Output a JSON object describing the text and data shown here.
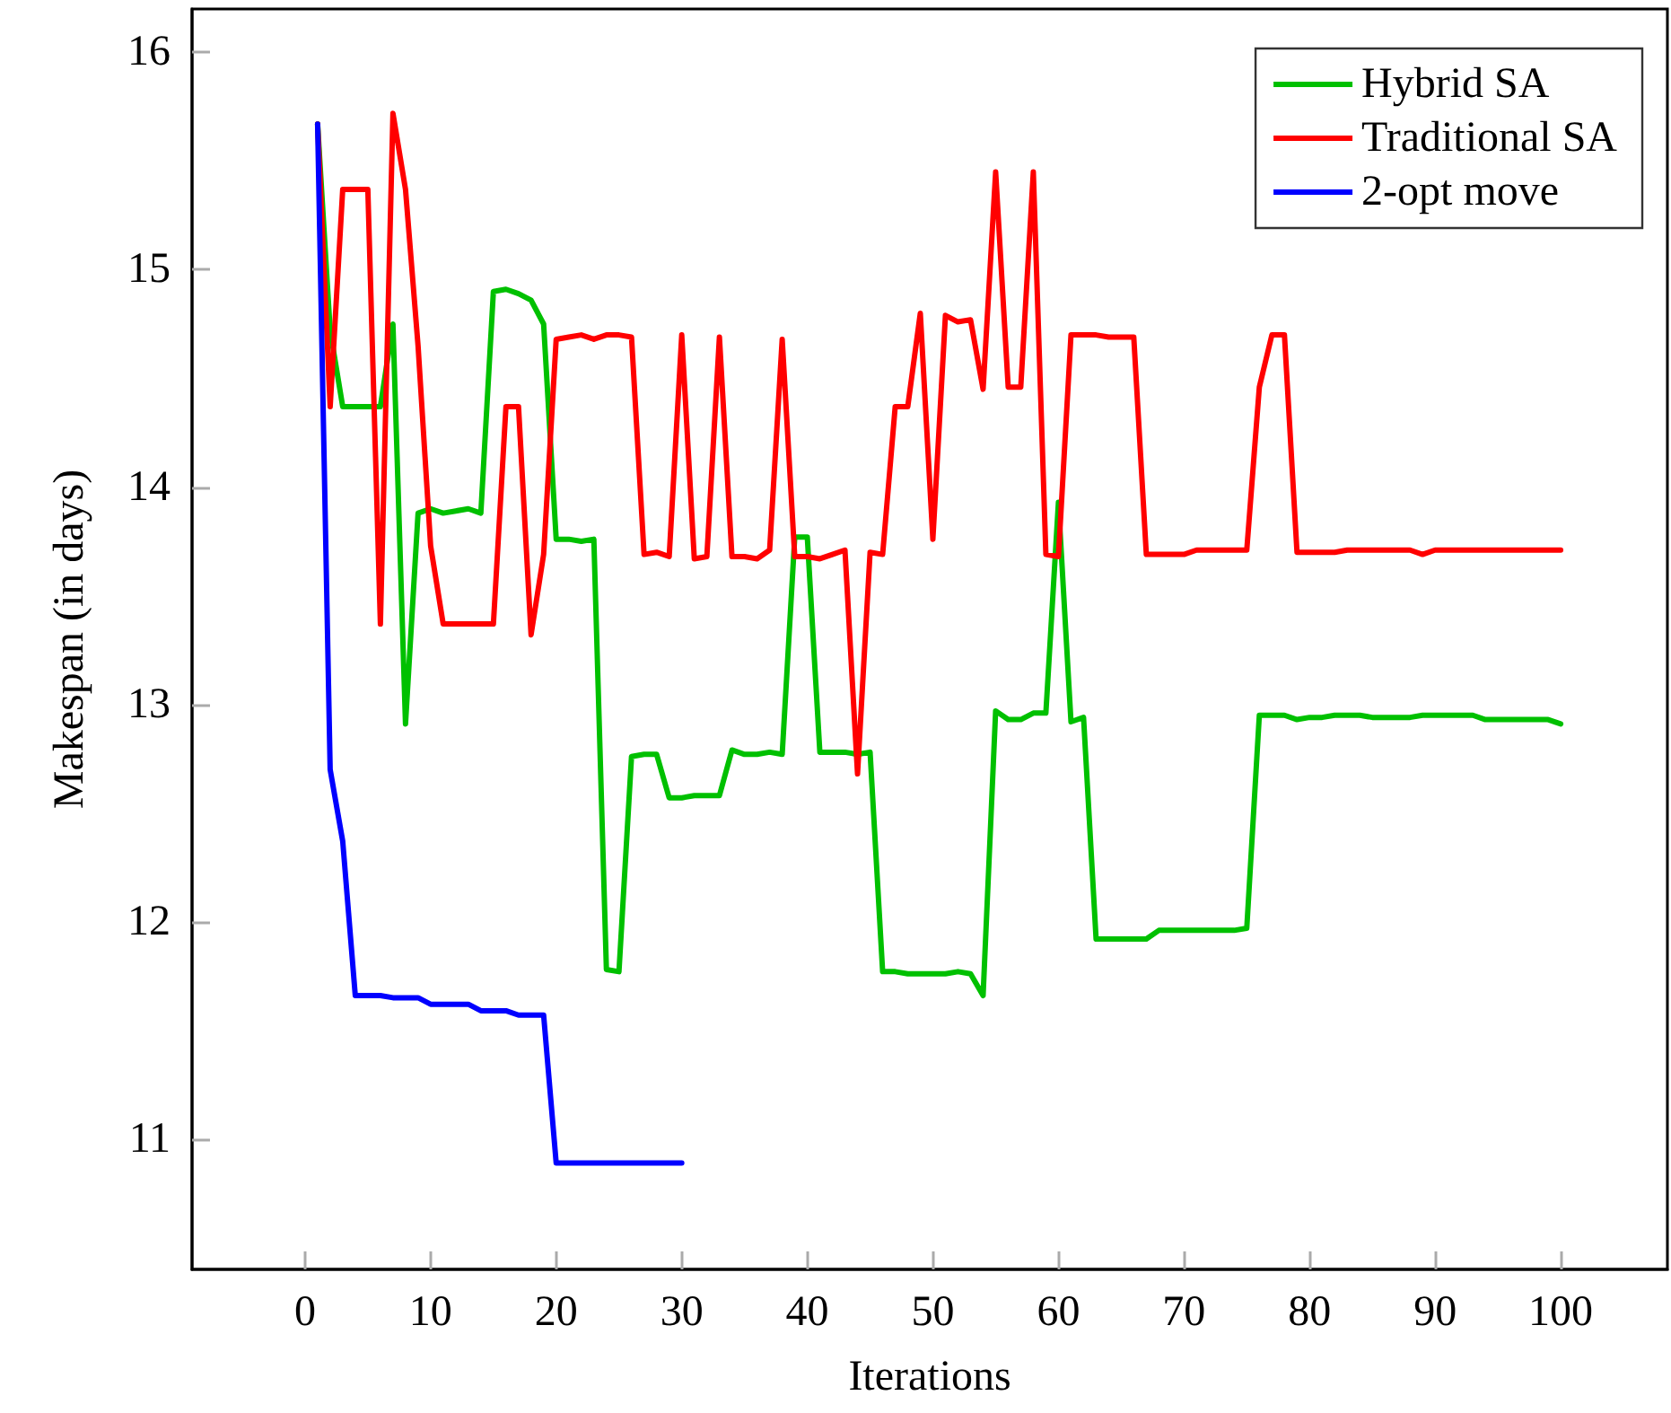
{
  "chart_data": {
    "type": "line",
    "xlabel": "Iterations",
    "ylabel": "Makespan (in days)",
    "x": [
      1,
      2,
      3,
      4,
      5,
      6,
      7,
      8,
      9,
      10,
      11,
      12,
      13,
      14,
      15,
      16,
      17,
      18,
      19,
      20,
      21,
      22,
      23,
      24,
      25,
      26,
      27,
      28,
      29,
      30,
      31,
      32,
      33,
      34,
      35,
      36,
      37,
      38,
      39,
      40,
      41,
      42,
      43,
      44,
      45,
      46,
      47,
      48,
      49,
      50,
      51,
      52,
      53,
      54,
      55,
      56,
      57,
      58,
      59,
      60,
      61,
      62,
      63,
      64,
      65,
      66,
      67,
      68,
      69,
      70,
      71,
      72,
      73,
      74,
      75,
      76,
      77,
      78,
      79,
      80,
      81,
      82,
      83,
      84,
      85,
      86,
      87,
      88,
      89,
      90,
      91,
      92,
      93,
      94,
      95,
      96,
      97,
      98,
      99,
      100
    ],
    "series": [
      {
        "name": "Hybrid SA",
        "color": "#00c000",
        "values": [
          15.67,
          14.72,
          14.37,
          14.37,
          14.37,
          14.37,
          14.75,
          12.91,
          13.88,
          13.9,
          13.88,
          13.89,
          13.9,
          13.88,
          14.9,
          14.91,
          14.89,
          14.86,
          14.75,
          13.76,
          13.76,
          13.75,
          13.76,
          11.78,
          11.77,
          12.76,
          12.77,
          12.77,
          12.57,
          12.57,
          12.58,
          12.58,
          12.58,
          12.79,
          12.77,
          12.77,
          12.78,
          12.77,
          13.77,
          13.77,
          12.78,
          12.78,
          12.78,
          12.77,
          12.78,
          11.77,
          11.77,
          11.76,
          11.76,
          11.76,
          11.76,
          11.77,
          11.76,
          11.66,
          12.97,
          12.93,
          12.93,
          12.96,
          12.96,
          13.93,
          12.92,
          12.94,
          11.92,
          11.92,
          11.92,
          11.92,
          11.92,
          11.96,
          11.96,
          11.96,
          11.96,
          11.96,
          11.96,
          11.96,
          11.97,
          12.95,
          12.95,
          12.95,
          12.93,
          12.94,
          12.94,
          12.95,
          12.95,
          12.95,
          12.94,
          12.94,
          12.94,
          12.94,
          12.95,
          12.95,
          12.95,
          12.95,
          12.95,
          12.93,
          12.93,
          12.93,
          12.93,
          12.93,
          12.93,
          12.91
        ]
      },
      {
        "name": "Traditional SA",
        "color": "#ff0000",
        "values": [
          15.67,
          14.37,
          15.37,
          15.37,
          15.37,
          13.37,
          15.72,
          15.37,
          14.65,
          13.73,
          13.37,
          13.37,
          13.37,
          13.37,
          13.37,
          14.37,
          14.37,
          13.32,
          13.69,
          14.68,
          14.69,
          14.7,
          14.68,
          14.7,
          14.7,
          14.69,
          13.69,
          13.7,
          13.68,
          14.7,
          13.67,
          13.68,
          14.69,
          13.68,
          13.68,
          13.67,
          13.71,
          14.68,
          13.68,
          13.68,
          13.67,
          13.69,
          13.71,
          12.68,
          13.7,
          13.69,
          14.37,
          14.37,
          14.8,
          13.76,
          14.79,
          14.76,
          14.77,
          14.45,
          15.45,
          14.46,
          14.46,
          15.45,
          13.69,
          13.68,
          14.7,
          14.7,
          14.7,
          14.69,
          14.69,
          14.69,
          13.69,
          13.69,
          13.69,
          13.69,
          13.71,
          13.71,
          13.71,
          13.71,
          13.71,
          14.46,
          14.7,
          14.7,
          13.7,
          13.7,
          13.7,
          13.7,
          13.71,
          13.71,
          13.71,
          13.71,
          13.71,
          13.71,
          13.69,
          13.71,
          13.71,
          13.71,
          13.71,
          13.71,
          13.71,
          13.71,
          13.71,
          13.71,
          13.71,
          13.71
        ]
      },
      {
        "name": "2-opt move",
        "color": "#0000ff",
        "x": [
          1,
          2,
          3,
          4,
          5,
          6,
          7,
          8,
          9,
          10,
          11,
          12,
          13,
          14,
          15,
          16,
          17,
          18,
          19,
          20,
          21,
          22,
          23,
          24,
          25,
          26,
          27,
          28,
          29,
          30
        ],
        "values": [
          15.67,
          12.7,
          12.37,
          11.66,
          11.66,
          11.66,
          11.65,
          11.65,
          11.65,
          11.62,
          11.62,
          11.62,
          11.62,
          11.59,
          11.59,
          11.59,
          11.57,
          11.57,
          11.57,
          10.89,
          10.89,
          10.89,
          10.89,
          10.89,
          10.89,
          10.89,
          10.89,
          10.89,
          10.89,
          10.89
        ]
      }
    ],
    "xlim": [
      -9,
      108.5
    ],
    "xticks": [
      0,
      10,
      20,
      30,
      40,
      50,
      60,
      70,
      80,
      90,
      100
    ],
    "ylim": [
      10.4,
      16.2
    ],
    "yticks": [
      11,
      12,
      13,
      14,
      15,
      16
    ],
    "grid": false,
    "legend": "top right",
    "marker": "none",
    "line_style": "solid"
  }
}
